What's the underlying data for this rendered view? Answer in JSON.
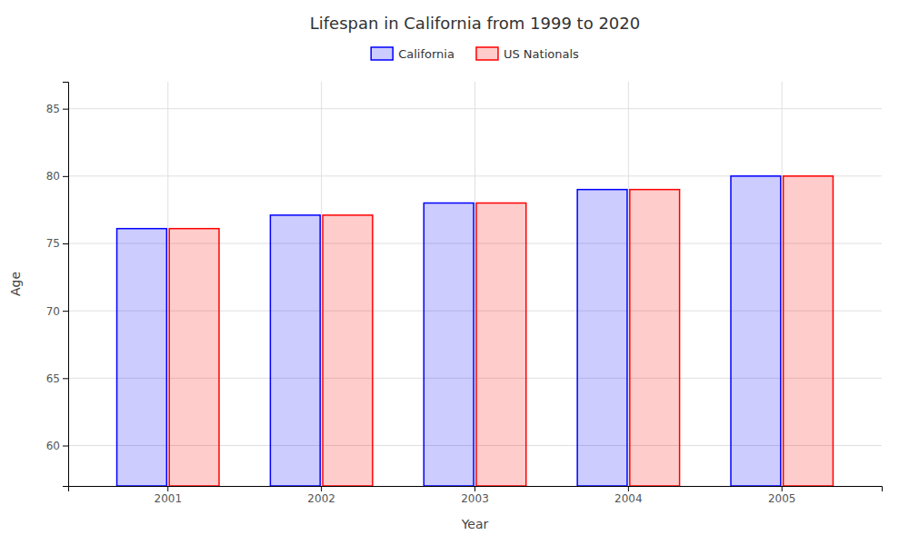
{
  "chart_data": {
    "type": "bar",
    "title": "Lifespan in California from 1999 to 2020",
    "xlabel": "Year",
    "ylabel": "Age",
    "categories": [
      "2001",
      "2002",
      "2003",
      "2004",
      "2005"
    ],
    "series": [
      {
        "name": "California",
        "color": "#0000ff",
        "values": [
          76.1,
          77.1,
          78.0,
          79.0,
          80.0
        ]
      },
      {
        "name": "US Nationals",
        "color": "#ff0000",
        "values": [
          76.1,
          77.1,
          78.0,
          79.0,
          80.0
        ]
      }
    ],
    "ylim": [
      57,
      87
    ],
    "yticks": [
      60,
      65,
      70,
      75,
      80,
      85
    ],
    "grid": true,
    "legend": "top"
  }
}
